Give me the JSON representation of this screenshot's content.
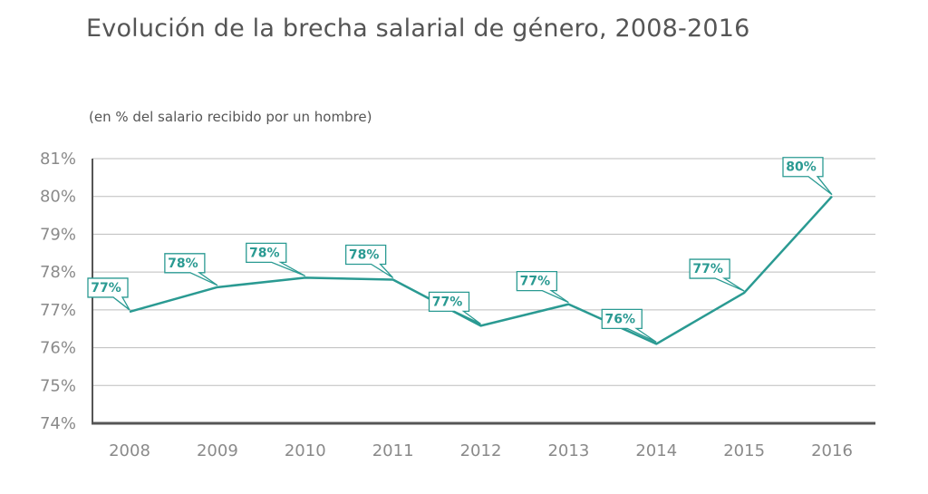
{
  "chart_data": {
    "type": "line",
    "title": "Evolución de la brecha salarial de género, 2008-2016",
    "subtitle": "(en % del salario recibido por un hombre)",
    "x": [
      "2008",
      "2009",
      "2010",
      "2011",
      "2012",
      "2013",
      "2014",
      "2015",
      "2016"
    ],
    "series": [
      {
        "values": [
          76.95,
          77.6,
          77.85,
          77.8,
          76.58,
          77.15,
          76.1,
          77.45,
          80.0
        ],
        "labels": [
          "77%",
          "78%",
          "78%",
          "78%",
          "77%",
          "77%",
          "76%",
          "77%",
          "80%"
        ]
      }
    ],
    "yticks": [
      "74%",
      "75%",
      "76%",
      "77%",
      "78%",
      "79%",
      "80%",
      "81%"
    ],
    "ylim": [
      74,
      81
    ],
    "grid": true,
    "legend": "none",
    "colors": {
      "line": "#2a9a92",
      "grid": "#bdbdbd",
      "axis": "#555555",
      "text": "#8a8a8a"
    }
  }
}
